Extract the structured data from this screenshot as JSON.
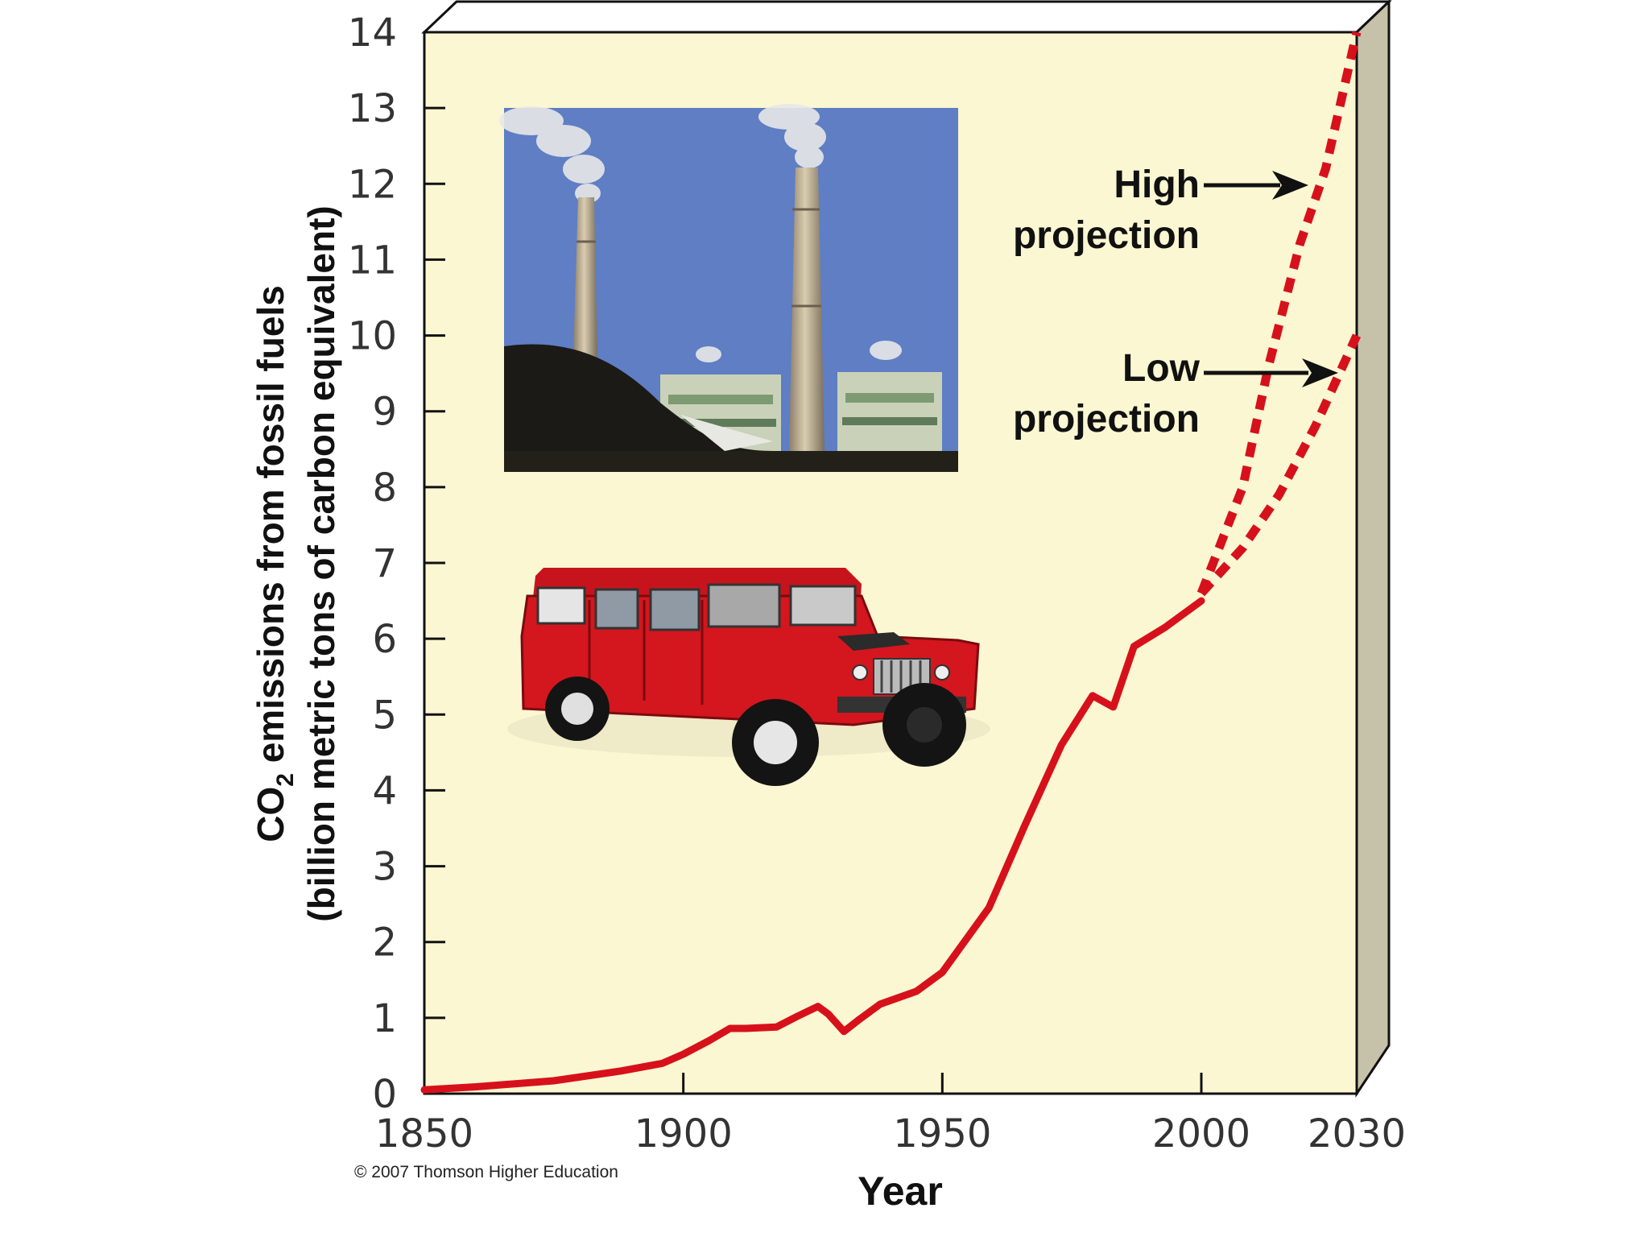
{
  "colors": {
    "panel_fill": "#fbf7d2",
    "side_fill": "#c6c2aa",
    "line": "#d7111b",
    "axis": "#111111"
  },
  "chart_data": {
    "type": "line",
    "title": "",
    "xlabel": "Year",
    "ylabel_line1": "CO2 emissions from fossil fuels",
    "ylabel_main": "CO",
    "ylabel_sub": "2",
    "ylabel_rest": " emissions from fossil fuels",
    "ylabel_line2": "(billion metric tons of carbon equivalent)",
    "xlim": [
      1850,
      2030
    ],
    "ylim": [
      0,
      14
    ],
    "xticks": [
      "1850",
      "1900",
      "1950",
      "2000",
      "2030"
    ],
    "xtick_values": [
      1850,
      1900,
      1950,
      2000,
      2030
    ],
    "yticks": [
      "0",
      "1",
      "2",
      "3",
      "4",
      "5",
      "6",
      "7",
      "8",
      "9",
      "10",
      "11",
      "12",
      "13",
      "14"
    ],
    "grid": false,
    "series": [
      {
        "style": "solid",
        "x": [
          1850,
          1860,
          1875,
          1888,
          1896,
          1900,
          1905,
          1909,
          1912,
          1918,
          1922,
          1926,
          1928,
          1931,
          1934,
          1938,
          1945,
          1950,
          1959,
          1966,
          1973,
          1979,
          1983,
          1987,
          1993,
          2000
        ],
        "y": [
          0.05,
          0.09,
          0.17,
          0.3,
          0.4,
          0.52,
          0.7,
          0.86,
          0.86,
          0.88,
          1.02,
          1.15,
          1.05,
          0.82,
          0.98,
          1.18,
          1.35,
          1.6,
          2.45,
          3.55,
          4.6,
          5.25,
          5.1,
          5.9,
          6.15,
          6.5
        ],
        "color": "#d7111b"
      },
      {
        "style": "dashed",
        "x": [
          2000,
          2008,
          2013,
          2019,
          2024,
          2030
        ],
        "y": [
          6.6,
          8.0,
          9.6,
          11.2,
          12.2,
          14.0
        ],
        "color": "#d7111b"
      },
      {
        "style": "dashed",
        "x": [
          2000,
          2008,
          2015,
          2022,
          2030
        ],
        "y": [
          6.6,
          7.2,
          7.9,
          8.8,
          10.0
        ],
        "color": "#d7111b"
      }
    ],
    "annotations": {
      "high_line1": "High",
      "high_line2": "projection",
      "low_line1": "Low",
      "low_line2": "projection"
    },
    "copyright": "© 2007 Thomson Higher Education"
  },
  "images": {
    "photo_top": "power-plant-smokestacks-photo",
    "photo_bottom": "red-hummer-photo"
  }
}
